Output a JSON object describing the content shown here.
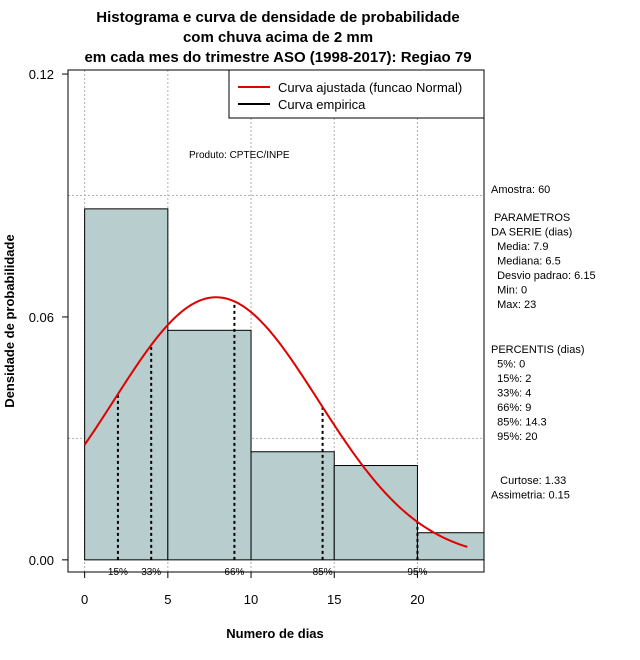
{
  "chart_data": {
    "type": "bar",
    "title_lines": [
      "Histograma e curva de densidade de probabilidade",
      "com chuva acima de 2 mm",
      "em cada mes do trimestre ASO (1998-2017): Regiao 79"
    ],
    "xlabel": "Numero de dias",
    "ylabel": "Densidade de probabilidade",
    "xlim": [
      -1,
      24
    ],
    "ylim": [
      -0.003,
      0.121
    ],
    "x_ticks": [
      0,
      5,
      10,
      15,
      20
    ],
    "y_ticks": [
      0.0,
      0.06,
      0.12
    ],
    "y_tick_labels": [
      "0.00",
      "0.06",
      "0.12"
    ],
    "grid": true,
    "bins": [
      {
        "start": 0,
        "end": 5,
        "density": 0.0867
      },
      {
        "start": 5,
        "end": 10,
        "density": 0.0567
      },
      {
        "start": 10,
        "end": 15,
        "density": 0.0267
      },
      {
        "start": 15,
        "end": 20,
        "density": 0.0233
      },
      {
        "start": 20,
        "end": 25,
        "density": 0.0067
      }
    ],
    "bar_color": "#b8cece",
    "normal_curve": {
      "mean": 7.9,
      "sd": 6.15,
      "x_from": 0,
      "x_to": 23,
      "color": "#e00000"
    },
    "percentile_lines": [
      {
        "label": "15%",
        "x": 2
      },
      {
        "label": "33%",
        "x": 4
      },
      {
        "label": "66%",
        "x": 9
      },
      {
        "label": "85%",
        "x": 14.3
      },
      {
        "label": "95%",
        "x": 20
      }
    ],
    "legend": [
      {
        "label": "Curva ajustada (funcao Normal)",
        "color": "#e00000"
      },
      {
        "label": "Curva empirica",
        "color": "#000000"
      }
    ],
    "annotation": "Produto: CPTEC/INPE"
  },
  "stats": {
    "sample": "Amostra: 60",
    "params_lines": [
      " PARAMETROS",
      "DA SERIE (dias)",
      "  Media: 7.9",
      "  Mediana: 6.5",
      "  Desvio padrao: 6.15",
      "  Min: 0",
      "  Max: 23"
    ],
    "percentile_lines": [
      "PERCENTIS (dias)",
      "  5%: 0",
      "  15%: 2",
      "  33%: 4",
      "  66%: 9",
      "  85%: 14.3",
      "  95%: 20"
    ],
    "shape_lines": [
      "   Curtose: 1.33",
      "Assimetria: 0.15"
    ]
  }
}
